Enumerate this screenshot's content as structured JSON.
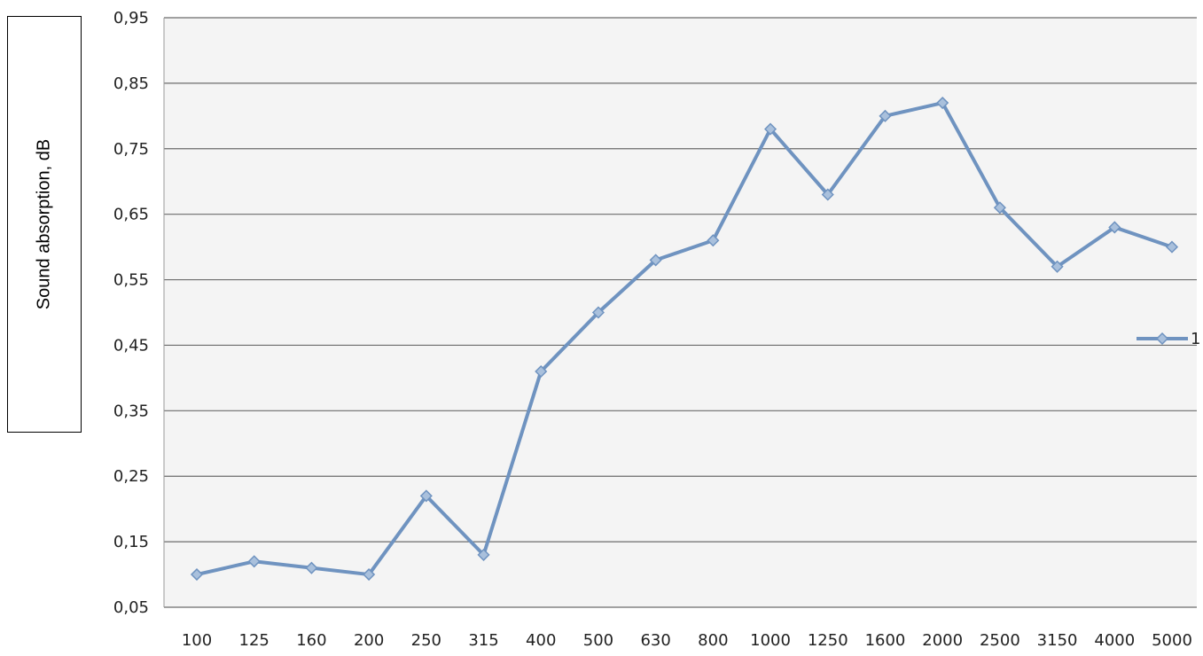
{
  "chart_data": {
    "type": "line",
    "title": "",
    "xlabel": "",
    "ylabel": "Sound absorption, dB",
    "categories": [
      "100",
      "125",
      "160",
      "200",
      "250",
      "315",
      "400",
      "500",
      "630",
      "800",
      "1000",
      "1250",
      "1600",
      "2000",
      "2500",
      "3150",
      "4000",
      "5000"
    ],
    "y_ticks": [
      "0,05",
      "0,15",
      "0,25",
      "0,35",
      "0,45",
      "0,55",
      "0,65",
      "0,75",
      "0,85",
      "0,95"
    ],
    "ylim": [
      0.05,
      0.95
    ],
    "grid": "horizontal",
    "legend_position": "right",
    "series": [
      {
        "name": "1",
        "color": "#6f93c0",
        "marker": "diamond",
        "values": [
          0.1,
          0.12,
          0.11,
          0.1,
          0.22,
          0.13,
          0.41,
          0.5,
          0.58,
          0.61,
          0.78,
          0.68,
          0.8,
          0.82,
          0.66,
          0.57,
          0.63,
          0.6
        ]
      }
    ]
  }
}
